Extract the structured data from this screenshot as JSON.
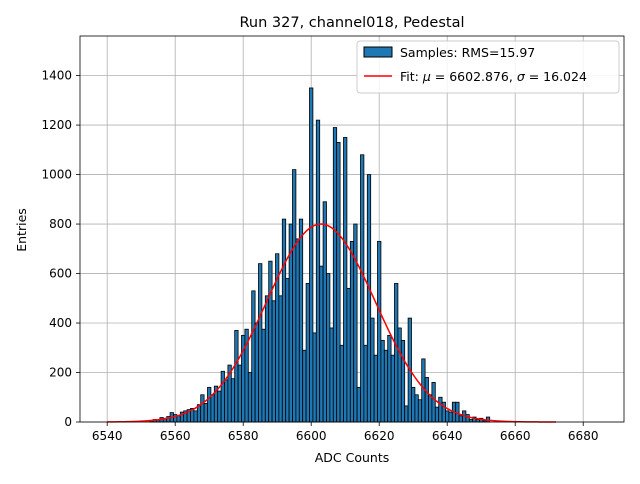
{
  "chart_data": {
    "type": "bar",
    "title": "Run 327, channel018, Pedestal",
    "xlabel": "ADC Counts",
    "ylabel": "Entries",
    "xlim": [
      6532,
      6692
    ],
    "ylim": [
      0,
      1560
    ],
    "xticks": [
      6540,
      6560,
      6580,
      6600,
      6620,
      6640,
      6660,
      6680
    ],
    "yticks": [
      0,
      200,
      400,
      600,
      800,
      1000,
      1200,
      1400
    ],
    "grid": true,
    "legend_position": "top-right",
    "colors": {
      "bars": "#1f77b4",
      "bar_edge": "#000000",
      "fit": "#ff0000",
      "grid": "#b0b0b0"
    },
    "legend": [
      {
        "label": "Samples: RMS=15.97",
        "marker": "patch"
      },
      {
        "label_prefix": "Fit: ",
        "mu_symbol": "μ",
        "mu_text": " = 6602.876, ",
        "sigma_symbol": "σ",
        "sigma_text": " = 16.024",
        "marker": "line"
      }
    ],
    "histogram": {
      "name": "Samples",
      "bins": [
        {
          "x": 6553,
          "y": 5
        },
        {
          "x": 6554,
          "y": 10
        },
        {
          "x": 6555,
          "y": 8
        },
        {
          "x": 6556,
          "y": 18
        },
        {
          "x": 6557,
          "y": 15
        },
        {
          "x": 6558,
          "y": 22
        },
        {
          "x": 6559,
          "y": 38
        },
        {
          "x": 6560,
          "y": 30
        },
        {
          "x": 6561,
          "y": 25
        },
        {
          "x": 6562,
          "y": 40
        },
        {
          "x": 6563,
          "y": 45
        },
        {
          "x": 6564,
          "y": 50
        },
        {
          "x": 6565,
          "y": 55
        },
        {
          "x": 6566,
          "y": 45
        },
        {
          "x": 6567,
          "y": 70
        },
        {
          "x": 6568,
          "y": 110
        },
        {
          "x": 6569,
          "y": 75
        },
        {
          "x": 6570,
          "y": 140
        },
        {
          "x": 6571,
          "y": 110
        },
        {
          "x": 6572,
          "y": 145
        },
        {
          "x": 6573,
          "y": 125
        },
        {
          "x": 6574,
          "y": 205
        },
        {
          "x": 6575,
          "y": 170
        },
        {
          "x": 6576,
          "y": 230
        },
        {
          "x": 6577,
          "y": 175
        },
        {
          "x": 6578,
          "y": 370
        },
        {
          "x": 6579,
          "y": 230
        },
        {
          "x": 6580,
          "y": 350
        },
        {
          "x": 6581,
          "y": 375
        },
        {
          "x": 6582,
          "y": 200
        },
        {
          "x": 6583,
          "y": 530
        },
        {
          "x": 6584,
          "y": 400
        },
        {
          "x": 6585,
          "y": 640
        },
        {
          "x": 6586,
          "y": 375
        },
        {
          "x": 6587,
          "y": 510
        },
        {
          "x": 6588,
          "y": 650
        },
        {
          "x": 6589,
          "y": 490
        },
        {
          "x": 6590,
          "y": 680
        },
        {
          "x": 6591,
          "y": 510
        },
        {
          "x": 6592,
          "y": 820
        },
        {
          "x": 6593,
          "y": 580
        },
        {
          "x": 6594,
          "y": 800
        },
        {
          "x": 6595,
          "y": 1020
        },
        {
          "x": 6596,
          "y": 740
        },
        {
          "x": 6597,
          "y": 820
        },
        {
          "x": 6598,
          "y": 290
        },
        {
          "x": 6599,
          "y": 560
        },
        {
          "x": 6600,
          "y": 1350
        },
        {
          "x": 6601,
          "y": 360
        },
        {
          "x": 6602,
          "y": 1220
        },
        {
          "x": 6603,
          "y": 630
        },
        {
          "x": 6604,
          "y": 890
        },
        {
          "x": 6605,
          "y": 600
        },
        {
          "x": 6606,
          "y": 380
        },
        {
          "x": 6607,
          "y": 1190
        },
        {
          "x": 6608,
          "y": 1130
        },
        {
          "x": 6609,
          "y": 310
        },
        {
          "x": 6610,
          "y": 1150
        },
        {
          "x": 6611,
          "y": 540
        },
        {
          "x": 6612,
          "y": 730
        },
        {
          "x": 6613,
          "y": 800
        },
        {
          "x": 6614,
          "y": 140
        },
        {
          "x": 6615,
          "y": 1080
        },
        {
          "x": 6616,
          "y": 310
        },
        {
          "x": 6617,
          "y": 1000
        },
        {
          "x": 6618,
          "y": 420
        },
        {
          "x": 6619,
          "y": 270
        },
        {
          "x": 6620,
          "y": 730
        },
        {
          "x": 6621,
          "y": 330
        },
        {
          "x": 6622,
          "y": 290
        },
        {
          "x": 6623,
          "y": 350
        },
        {
          "x": 6624,
          "y": 270
        },
        {
          "x": 6625,
          "y": 560
        },
        {
          "x": 6626,
          "y": 380
        },
        {
          "x": 6627,
          "y": 330
        },
        {
          "x": 6628,
          "y": 65
        },
        {
          "x": 6629,
          "y": 420
        },
        {
          "x": 6630,
          "y": 140
        },
        {
          "x": 6631,
          "y": 110
        },
        {
          "x": 6632,
          "y": 90
        },
        {
          "x": 6633,
          "y": 255
        },
        {
          "x": 6634,
          "y": 180
        },
        {
          "x": 6635,
          "y": 110
        },
        {
          "x": 6636,
          "y": 160
        },
        {
          "x": 6637,
          "y": 60
        },
        {
          "x": 6638,
          "y": 100
        },
        {
          "x": 6639,
          "y": 80
        },
        {
          "x": 6640,
          "y": 45
        },
        {
          "x": 6641,
          "y": 40
        },
        {
          "x": 6642,
          "y": 80
        },
        {
          "x": 6643,
          "y": 80
        },
        {
          "x": 6644,
          "y": 25
        },
        {
          "x": 6645,
          "y": 45
        },
        {
          "x": 6646,
          "y": 30
        },
        {
          "x": 6647,
          "y": 10
        },
        {
          "x": 6648,
          "y": 20
        },
        {
          "x": 6649,
          "y": 10
        },
        {
          "x": 6650,
          "y": 15
        },
        {
          "x": 6651,
          "y": 5
        },
        {
          "x": 6652,
          "y": 20
        }
      ]
    },
    "fit": {
      "name": "Fit",
      "type": "line",
      "mu": 6602.876,
      "sigma": 16.024,
      "amplitude": 800,
      "x_range": [
        6540,
        6672
      ]
    }
  }
}
